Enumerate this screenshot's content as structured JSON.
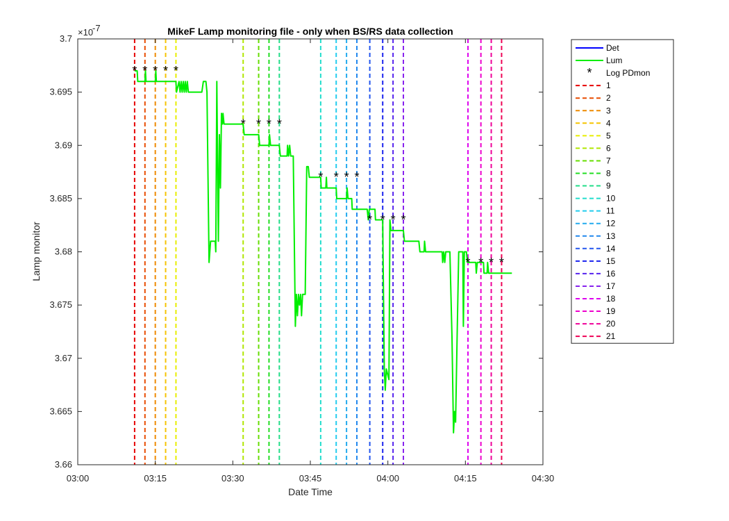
{
  "chart_data": {
    "type": "line",
    "title": "MikeF Lamp monitoring file - only when BS/RS data collection",
    "xlabel": "Date Time",
    "ylabel": "Lamp monitor",
    "y_exponent_label": "×10",
    "y_exponent_power": "-7",
    "xlim_min": [
      0,
      90
    ],
    "x_tick_values": [
      0,
      15,
      30,
      45,
      60,
      75,
      90
    ],
    "x_tick_labels": [
      "03:00",
      "03:15",
      "03:30",
      "03:45",
      "04:00",
      "04:15",
      "04:30"
    ],
    "ylim": [
      3.66,
      3.7
    ],
    "y_ticks": [
      3.66,
      3.665,
      3.67,
      3.675,
      3.68,
      3.685,
      3.69,
      3.695,
      3.7
    ],
    "y_tick_labels": [
      "3.66",
      "3.665",
      "3.67",
      "3.675",
      "3.68",
      "3.685",
      "3.69",
      "3.695",
      "3.7"
    ],
    "grid": false,
    "legend_position": "outside-top-right",
    "series": [
      {
        "name": "Det",
        "color": "#0000ff",
        "style": "solid",
        "points": []
      },
      {
        "name": "Lum",
        "color": "#00ee00",
        "style": "solid",
        "points": [
          [
            11.0,
            3.697
          ],
          [
            11.5,
            3.697
          ],
          [
            11.6,
            3.696
          ],
          [
            13.0,
            3.696
          ],
          [
            13.1,
            3.697
          ],
          [
            13.2,
            3.696
          ],
          [
            15.0,
            3.696
          ],
          [
            15.1,
            3.697
          ],
          [
            15.2,
            3.696
          ],
          [
            19.0,
            3.696
          ],
          [
            19.1,
            3.695
          ],
          [
            19.6,
            3.696
          ],
          [
            19.8,
            3.695
          ],
          [
            20.0,
            3.696
          ],
          [
            20.2,
            3.695
          ],
          [
            20.4,
            3.696
          ],
          [
            20.6,
            3.695
          ],
          [
            20.8,
            3.696
          ],
          [
            21.0,
            3.695
          ],
          [
            21.2,
            3.696
          ],
          [
            21.4,
            3.695
          ],
          [
            24.0,
            3.695
          ],
          [
            24.3,
            3.696
          ],
          [
            24.8,
            3.696
          ],
          [
            25.0,
            3.695
          ],
          [
            25.4,
            3.679
          ],
          [
            25.7,
            3.681
          ],
          [
            26.6,
            3.681
          ],
          [
            26.7,
            3.68
          ],
          [
            26.9,
            3.696
          ],
          [
            27.2,
            3.681
          ],
          [
            27.4,
            3.691
          ],
          [
            27.6,
            3.686
          ],
          [
            27.8,
            3.693
          ],
          [
            28.0,
            3.692
          ],
          [
            28.1,
            3.693
          ],
          [
            28.3,
            3.692
          ],
          [
            32.0,
            3.692
          ],
          [
            32.2,
            3.691
          ],
          [
            35.0,
            3.691
          ],
          [
            35.2,
            3.69
          ],
          [
            37.0,
            3.69
          ],
          [
            37.1,
            3.691
          ],
          [
            37.3,
            3.69
          ],
          [
            39.0,
            3.69
          ],
          [
            39.2,
            3.689
          ],
          [
            40.5,
            3.689
          ],
          [
            40.6,
            3.69
          ],
          [
            40.8,
            3.689
          ],
          [
            41.0,
            3.69
          ],
          [
            41.2,
            3.689
          ],
          [
            41.7,
            3.689
          ],
          [
            42.1,
            3.673
          ],
          [
            42.3,
            3.676
          ],
          [
            42.5,
            3.674
          ],
          [
            42.7,
            3.676
          ],
          [
            42.9,
            3.675
          ],
          [
            43.1,
            3.676
          ],
          [
            43.3,
            3.674
          ],
          [
            43.5,
            3.676
          ],
          [
            44.0,
            3.676
          ],
          [
            44.3,
            3.688
          ],
          [
            44.6,
            3.688
          ],
          [
            44.8,
            3.687
          ],
          [
            47.0,
            3.687
          ],
          [
            47.1,
            3.686
          ],
          [
            48.0,
            3.686
          ],
          [
            48.1,
            3.687
          ],
          [
            48.2,
            3.686
          ],
          [
            50.0,
            3.686
          ],
          [
            50.1,
            3.685
          ],
          [
            52.0,
            3.685
          ],
          [
            52.1,
            3.686
          ],
          [
            52.3,
            3.685
          ],
          [
            53.0,
            3.685
          ],
          [
            53.1,
            3.684
          ],
          [
            56.0,
            3.684
          ],
          [
            56.2,
            3.683
          ],
          [
            56.4,
            3.684
          ],
          [
            57.5,
            3.684
          ],
          [
            57.6,
            3.683
          ],
          [
            58.5,
            3.683
          ],
          [
            59.0,
            3.683
          ],
          [
            59.3,
            3.669
          ],
          [
            59.5,
            3.667
          ],
          [
            59.7,
            3.669
          ],
          [
            60.2,
            3.668
          ],
          [
            60.4,
            3.683
          ],
          [
            60.6,
            3.682
          ],
          [
            63.0,
            3.682
          ],
          [
            63.2,
            3.681
          ],
          [
            66.0,
            3.681
          ],
          [
            66.2,
            3.68
          ],
          [
            67.0,
            3.68
          ],
          [
            67.1,
            3.681
          ],
          [
            67.3,
            3.68
          ],
          [
            70.5,
            3.68
          ],
          [
            70.6,
            3.679
          ],
          [
            70.8,
            3.68
          ],
          [
            71.0,
            3.679
          ],
          [
            71.2,
            3.68
          ],
          [
            72.0,
            3.68
          ],
          [
            72.4,
            3.672
          ],
          [
            72.7,
            3.663
          ],
          [
            72.9,
            3.665
          ],
          [
            73.1,
            3.664
          ],
          [
            73.4,
            3.672
          ],
          [
            73.7,
            3.68
          ],
          [
            74.5,
            3.68
          ],
          [
            74.6,
            3.673
          ],
          [
            74.8,
            3.68
          ],
          [
            75.2,
            3.68
          ],
          [
            75.4,
            3.679
          ],
          [
            77.0,
            3.679
          ],
          [
            77.1,
            3.678
          ],
          [
            77.3,
            3.679
          ],
          [
            78.5,
            3.679
          ],
          [
            78.6,
            3.678
          ],
          [
            79.2,
            3.678
          ],
          [
            79.3,
            3.679
          ],
          [
            79.5,
            3.678
          ],
          [
            84.0,
            3.678
          ]
        ]
      },
      {
        "name": "Log PDmon",
        "color": "#000000",
        "style": "marker-asterisk",
        "points": [
          [
            11.0,
            3.697
          ],
          [
            13.0,
            3.697
          ],
          [
            15.0,
            3.697
          ],
          [
            17.0,
            3.697
          ],
          [
            19.0,
            3.697
          ],
          [
            32.0,
            3.692
          ],
          [
            35.0,
            3.692
          ],
          [
            37.0,
            3.692
          ],
          [
            39.0,
            3.692
          ],
          [
            47.0,
            3.687
          ],
          [
            50.0,
            3.687
          ],
          [
            52.0,
            3.687
          ],
          [
            54.0,
            3.687
          ],
          [
            56.5,
            3.683
          ],
          [
            59.0,
            3.683
          ],
          [
            61.0,
            3.683
          ],
          [
            63.0,
            3.683
          ],
          [
            75.5,
            3.679
          ],
          [
            78.0,
            3.679
          ],
          [
            80.0,
            3.679
          ],
          [
            82.0,
            3.679
          ]
        ]
      }
    ],
    "vlines": [
      {
        "name": "1",
        "x": 11.0,
        "color": "#e60000"
      },
      {
        "name": "2",
        "x": 13.0,
        "color": "#e84c00"
      },
      {
        "name": "3",
        "x": 15.0,
        "color": "#ee8a00"
      },
      {
        "name": "4",
        "x": 17.0,
        "color": "#f5c400"
      },
      {
        "name": "5",
        "x": 19.0,
        "color": "#e8ee00"
      },
      {
        "name": "6",
        "x": 32.0,
        "color": "#b0e600"
      },
      {
        "name": "7",
        "x": 35.0,
        "color": "#66dd00"
      },
      {
        "name": "8",
        "x": 37.0,
        "color": "#22dd22"
      },
      {
        "name": "9",
        "x": 39.0,
        "color": "#22dd88"
      },
      {
        "name": "10",
        "x": 47.0,
        "color": "#22ddcc"
      },
      {
        "name": "11",
        "x": 50.0,
        "color": "#22ccee"
      },
      {
        "name": "12",
        "x": 52.0,
        "color": "#22aaee"
      },
      {
        "name": "13",
        "x": 54.0,
        "color": "#2288ee"
      },
      {
        "name": "14",
        "x": 56.5,
        "color": "#2255ee"
      },
      {
        "name": "15",
        "x": 59.0,
        "color": "#1a22ee"
      },
      {
        "name": "16",
        "x": 61.0,
        "color": "#5522ee"
      },
      {
        "name": "17",
        "x": 63.0,
        "color": "#8822ee"
      },
      {
        "name": "18",
        "x": 75.5,
        "color": "#dd00ee"
      },
      {
        "name": "19",
        "x": 78.0,
        "color": "#ee00cc"
      },
      {
        "name": "20",
        "x": 80.0,
        "color": "#ee0099"
      },
      {
        "name": "21",
        "x": 82.0,
        "color": "#ee0055"
      }
    ]
  }
}
